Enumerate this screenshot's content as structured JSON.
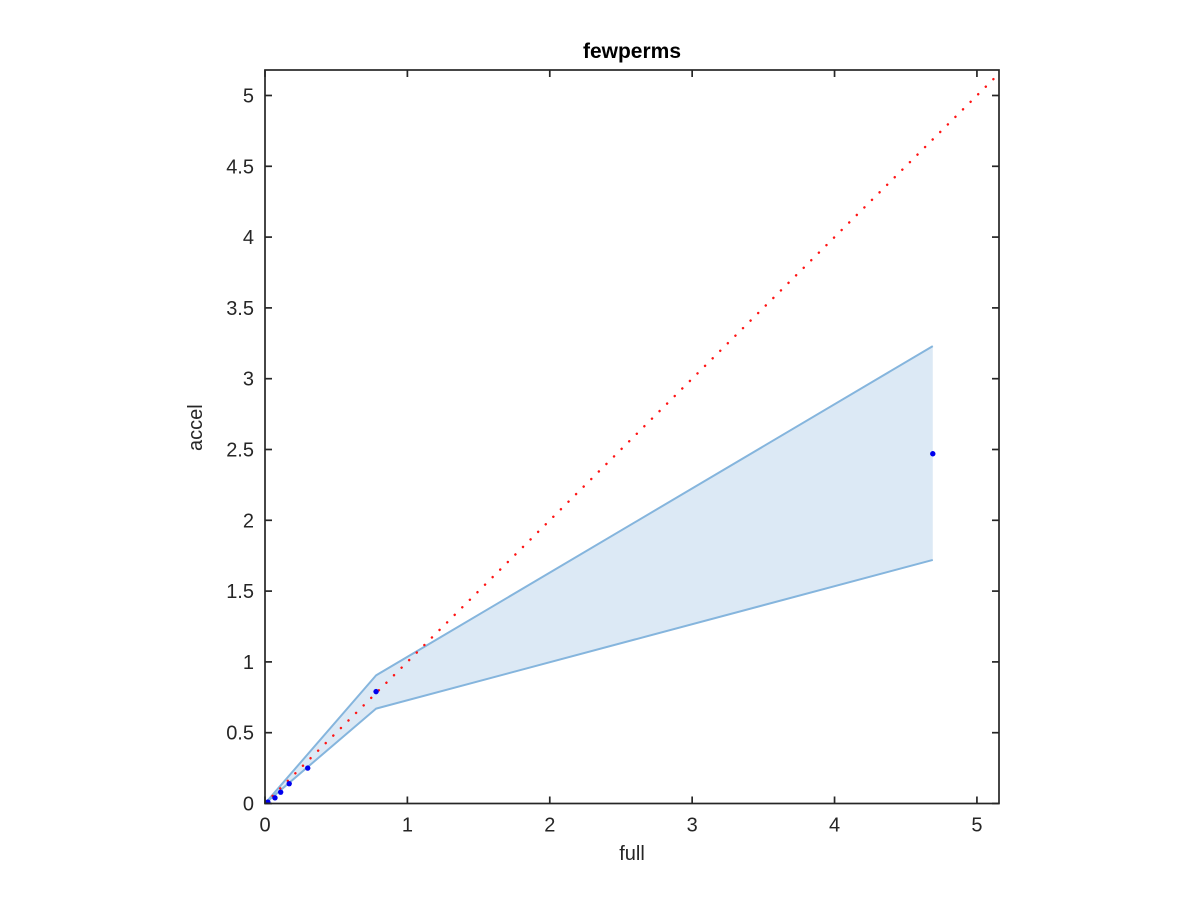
{
  "figure": {
    "background": "#ffffff"
  },
  "chart_data": {
    "type": "scatter",
    "title": "fewperms",
    "xlabel": "full",
    "ylabel": "accel",
    "xlim": [
      0,
      5.155
    ],
    "ylim": [
      0,
      5.18
    ],
    "x_ticks": [
      0,
      1,
      2,
      3,
      4,
      5
    ],
    "x_tick_labels": [
      "0",
      "1",
      "2",
      "3",
      "4",
      "5"
    ],
    "y_ticks": [
      0,
      0.5,
      1,
      1.5,
      2,
      2.5,
      3,
      3.5,
      4,
      4.5,
      5
    ],
    "y_tick_labels": [
      "0",
      "0.5",
      "1",
      "1.5",
      "2",
      "2.5",
      "3",
      "3.5",
      "4",
      "4.5",
      "5"
    ],
    "grid": false,
    "legend": "none",
    "box": true,
    "tick_direction": "in",
    "band": {
      "name": "confidence-band",
      "fill_color": "#dce9f5",
      "edge_color": "#85b5dd",
      "upper": [
        [
          0,
          0
        ],
        [
          0.78,
          0.905
        ],
        [
          4.69,
          3.23
        ]
      ],
      "lower": [
        [
          0,
          0
        ],
        [
          0.78,
          0.67
        ],
        [
          4.69,
          1.72
        ]
      ]
    },
    "series": [
      {
        "name": "identity-reference-line",
        "type": "line",
        "line_style": "dotted",
        "color": "#ff1414",
        "points": [
          [
            0,
            0
          ],
          [
            5.19,
            5.19
          ]
        ]
      },
      {
        "name": "accel-vs-full-points",
        "type": "scatter",
        "marker": "dot",
        "color": "#0000ee",
        "points": [
          [
            0.02,
            0.01
          ],
          [
            0.07,
            0.04
          ],
          [
            0.11,
            0.08
          ],
          [
            0.17,
            0.14
          ],
          [
            0.3,
            0.25
          ],
          [
            0.78,
            0.79
          ],
          [
            4.69,
            2.47
          ]
        ]
      }
    ],
    "axis_color": "#262626",
    "tick_label_color": "#262626"
  }
}
